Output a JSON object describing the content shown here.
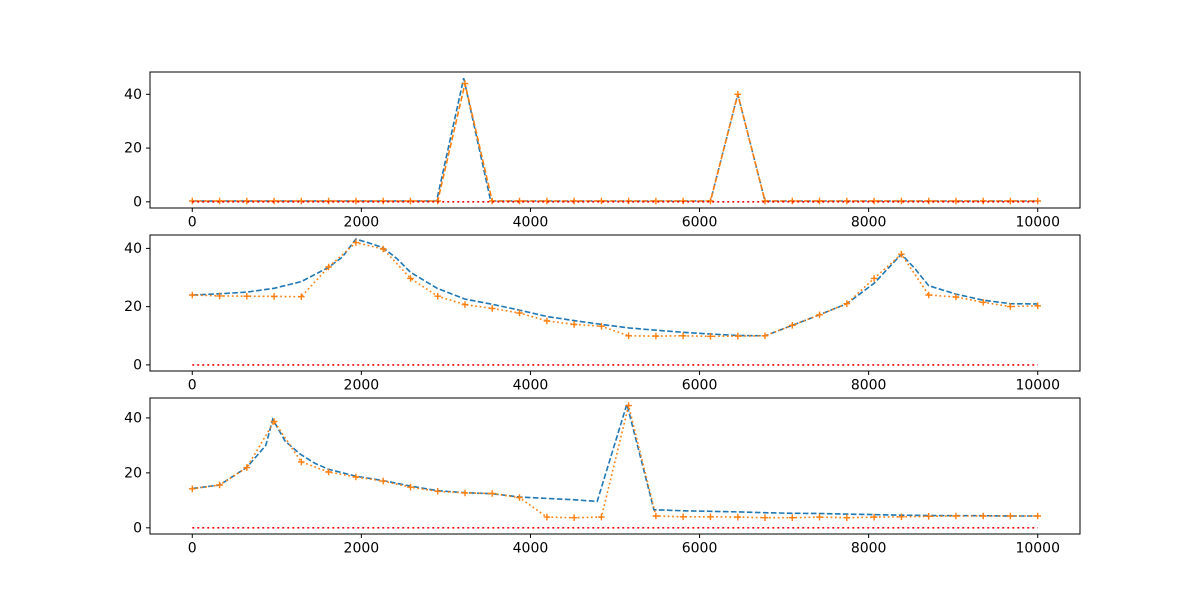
{
  "figure": {
    "background": "#ffffff"
  },
  "palette": {
    "blue": "#1f77b4",
    "orange": "#ff7f0e",
    "red": "#f40000",
    "axis": "#000000"
  },
  "chart_data": [
    {
      "id": "subplot-1",
      "type": "line",
      "title": "",
      "xlabel": "",
      "ylabel": "",
      "grid": false,
      "legend": "none",
      "xlim": [
        -500,
        10500
      ],
      "ylim": [
        -2.3,
        48.3
      ],
      "x_ticks": [
        0,
        2000,
        4000,
        6000,
        8000,
        10000
      ],
      "x_tick_labels": [
        "0",
        "2000",
        "4000",
        "6000",
        "8000",
        "10000"
      ],
      "y_ticks": [
        0,
        20,
        40
      ],
      "y_tick_labels": [
        "0",
        "20",
        "40"
      ],
      "series": [
        {
          "name": "original-signal-blue-dashed",
          "color": "blue",
          "line_style": "dashed",
          "marker": "none",
          "x": [
            0,
            2890,
            3210,
            3530,
            6129,
            6452,
            6774,
            10000
          ],
          "y": [
            0.3,
            0.3,
            46,
            0.3,
            0.3,
            40,
            0.3,
            0.3
          ]
        },
        {
          "name": "sampled-signal-orange-dashed",
          "color": "orange",
          "line_style": "dashed",
          "dash_offset": 4.2,
          "marker": "plus",
          "x": [
            0,
            323,
            645,
            968,
            1290,
            1613,
            1935,
            2258,
            2581,
            2903,
            3226,
            3548,
            3871,
            4194,
            4516,
            4839,
            5161,
            5484,
            5806,
            6129,
            6452,
            6774,
            7097,
            7419,
            7742,
            8065,
            8387,
            8710,
            9032,
            9355,
            9677,
            10000
          ],
          "y": [
            0.3,
            0.3,
            0.3,
            0.3,
            0.3,
            0.3,
            0.3,
            0.3,
            0.3,
            0.3,
            44,
            0.3,
            0.3,
            0.3,
            0.3,
            0.3,
            0.3,
            0.3,
            0.3,
            0.3,
            40,
            0.3,
            0.3,
            0.3,
            0.3,
            0.3,
            0.3,
            0.3,
            0.3,
            0.3,
            0.3,
            0.3
          ]
        },
        {
          "name": "error-red-dotted",
          "color": "red",
          "line_style": "red_dotted",
          "marker": "none",
          "x": [
            0,
            10000
          ],
          "y": [
            0,
            0
          ]
        }
      ]
    },
    {
      "id": "subplot-2",
      "type": "line",
      "title": "",
      "xlabel": "",
      "ylabel": "",
      "grid": false,
      "legend": "none",
      "xlim": [
        -500,
        10500
      ],
      "ylim": [
        -2.1,
        44.6
      ],
      "x_ticks": [
        0,
        2000,
        4000,
        6000,
        8000,
        10000
      ],
      "x_tick_labels": [
        "0",
        "2000",
        "4000",
        "6000",
        "8000",
        "10000"
      ],
      "y_ticks": [
        0,
        20,
        40
      ],
      "y_tick_labels": [
        "0",
        "20",
        "40"
      ],
      "series": [
        {
          "name": "original-signal-blue-dashed",
          "color": "blue",
          "line_style": "dashed",
          "marker": "none",
          "x": [
            0,
            323,
            645,
            968,
            1290,
            1613,
            1775,
            1935,
            2100,
            2258,
            2420,
            2581,
            2903,
            3226,
            3548,
            3871,
            4194,
            4516,
            4839,
            5161,
            5484,
            5806,
            6129,
            6452,
            6774,
            7097,
            7419,
            7742,
            8065,
            8387,
            8550,
            8710,
            9032,
            9355,
            9677,
            10000
          ],
          "y": [
            24,
            24.4,
            25.0,
            26.3,
            28.6,
            33.5,
            37,
            43.2,
            41.8,
            40.2,
            36.5,
            31.8,
            26.2,
            22.6,
            20.8,
            18.8,
            16.6,
            15.2,
            13.9,
            12.7,
            11.9,
            11.2,
            10.6,
            10.1,
            10.0,
            13.6,
            17.2,
            21.0,
            28,
            38,
            33,
            27.2,
            24.3,
            22.2,
            21.0,
            20.9
          ]
        },
        {
          "name": "sampled-signal-orange-dotted",
          "color": "orange",
          "line_style": "dotted",
          "marker": "plus",
          "x": [
            0,
            323,
            645,
            968,
            1290,
            1613,
            1935,
            2258,
            2581,
            2903,
            3226,
            3548,
            3871,
            4194,
            4516,
            4839,
            5161,
            5484,
            5806,
            6129,
            6452,
            6774,
            7097,
            7419,
            7742,
            8065,
            8387,
            8710,
            9032,
            9355,
            9677,
            10000
          ],
          "y": [
            24.0,
            23.7,
            23.6,
            23.5,
            23.4,
            33.6,
            42.0,
            39.8,
            29.7,
            23.6,
            20.7,
            19.4,
            17.8,
            15.1,
            13.9,
            13.3,
            10.0,
            9.9,
            10.0,
            9.8,
            9.9,
            10.0,
            13.6,
            17.2,
            21.0,
            29.7,
            38.0,
            24.0,
            23.3,
            21.5,
            20.0,
            20.3
          ]
        },
        {
          "name": "error-red-dotted",
          "color": "red",
          "line_style": "red_dotted",
          "marker": "none",
          "x": [
            0,
            10000
          ],
          "y": [
            0,
            0
          ]
        }
      ]
    },
    {
      "id": "subplot-3",
      "type": "line",
      "title": "",
      "xlabel": "",
      "ylabel": "",
      "grid": false,
      "legend": "none",
      "xlim": [
        -500,
        10500
      ],
      "ylim": [
        -2.25,
        47.25
      ],
      "x_ticks": [
        0,
        2000,
        4000,
        6000,
        8000,
        10000
      ],
      "x_tick_labels": [
        "0",
        "2000",
        "4000",
        "6000",
        "8000",
        "10000"
      ],
      "y_ticks": [
        0,
        20,
        40
      ],
      "y_tick_labels": [
        "0",
        "20",
        "40"
      ],
      "series": [
        {
          "name": "original-signal-blue-dashed",
          "color": "blue",
          "line_style": "dashed",
          "marker": "none",
          "x": [
            0,
            323,
            645,
            870,
            951,
            1100,
            1278,
            1450,
            1613,
            1935,
            2258,
            2581,
            2903,
            3226,
            3548,
            3871,
            4194,
            4516,
            4790,
            5141,
            5460,
            5806,
            6129,
            6452,
            6774,
            7097,
            7419,
            7742,
            8065,
            8387,
            8710,
            9032,
            9355,
            9677,
            10000
          ],
          "y": [
            14.3,
            15.6,
            22,
            30,
            39.5,
            31.5,
            26.8,
            23.5,
            21.3,
            18.8,
            17.2,
            15.2,
            13.5,
            12.8,
            12.4,
            11.2,
            10.7,
            10.2,
            9.6,
            45,
            6.6,
            6.2,
            6.0,
            5.8,
            5.5,
            5.3,
            5.2,
            5.0,
            4.8,
            4.6,
            4.5,
            4.4,
            4.4,
            4.3,
            4.3
          ]
        },
        {
          "name": "sampled-signal-orange-dotted",
          "color": "orange",
          "line_style": "dotted",
          "marker": "plus",
          "x": [
            0,
            323,
            645,
            968,
            1290,
            1613,
            1935,
            2258,
            2581,
            2903,
            3226,
            3548,
            3871,
            4194,
            4516,
            4839,
            5161,
            5484,
            5806,
            6129,
            6452,
            6774,
            7097,
            7419,
            7742,
            8065,
            8387,
            8710,
            9032,
            9355,
            9677,
            10000
          ],
          "y": [
            14.2,
            15.6,
            21.9,
            38.7,
            24.0,
            20.3,
            18.5,
            17.0,
            14.8,
            13.3,
            12.7,
            12.5,
            11.0,
            3.9,
            3.7,
            3.9,
            44.5,
            4.3,
            4.0,
            4.0,
            3.9,
            3.7,
            3.7,
            3.9,
            3.7,
            3.9,
            4.0,
            4.2,
            4.3,
            4.3,
            4.3,
            4.3
          ]
        },
        {
          "name": "error-red-dotted",
          "color": "red",
          "line_style": "red_dotted",
          "marker": "none",
          "x": [
            0,
            10000
          ],
          "y": [
            0,
            0
          ]
        }
      ]
    }
  ]
}
